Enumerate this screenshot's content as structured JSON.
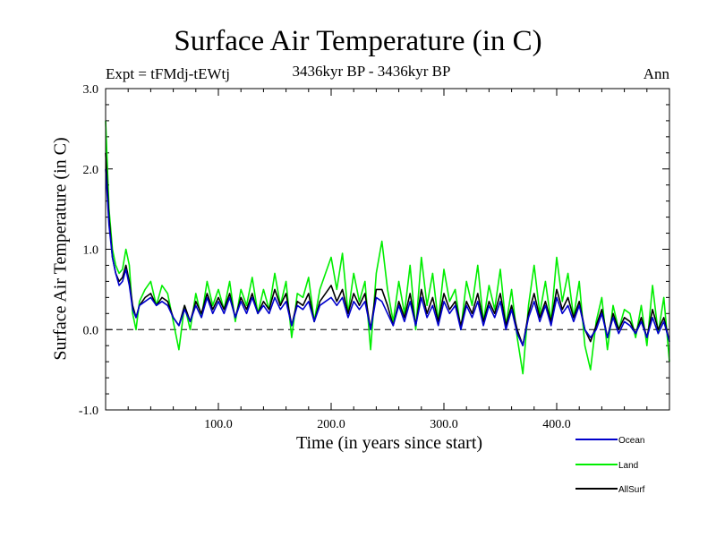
{
  "chart_data": {
    "type": "line",
    "title": "Surface Air Temperature (in C)",
    "experiment": "Expt = tFMdj-tEWtj",
    "period": "3436kyr BP - 3436kyr BP",
    "season": "Ann",
    "xlabel": "Time (in years since start)",
    "ylabel": "Surface Air Temperature (in C)",
    "xlim": [
      0,
      500
    ],
    "ylim": [
      -1.0,
      3.0
    ],
    "x_ticks": [
      {
        "value": 100,
        "label": "100.0"
      },
      {
        "value": 200,
        "label": "200.0"
      },
      {
        "value": 300,
        "label": "300.0"
      },
      {
        "value": 400,
        "label": "400.0"
      }
    ],
    "y_ticks": [
      {
        "value": -1.0,
        "label": "-1.0"
      },
      {
        "value": 0.0,
        "label": "0.0"
      },
      {
        "value": 1.0,
        "label": "1.0"
      },
      {
        "value": 2.0,
        "label": "2.0"
      },
      {
        "value": 3.0,
        "label": "3.0"
      }
    ],
    "reference_line": 0.0,
    "series": [
      {
        "name": "Land",
        "color": "#00ee00",
        "x": [
          0,
          3,
          6,
          9,
          12,
          15,
          18,
          21,
          24,
          27,
          30,
          35,
          40,
          45,
          50,
          55,
          60,
          65,
          70,
          75,
          80,
          85,
          90,
          95,
          100,
          105,
          110,
          115,
          120,
          125,
          130,
          135,
          140,
          145,
          150,
          155,
          160,
          165,
          170,
          175,
          180,
          185,
          190,
          195,
          200,
          205,
          210,
          215,
          220,
          225,
          230,
          235,
          240,
          245,
          250,
          255,
          260,
          265,
          270,
          275,
          280,
          285,
          290,
          295,
          300,
          305,
          310,
          315,
          320,
          325,
          330,
          335,
          340,
          345,
          350,
          355,
          360,
          365,
          370,
          375,
          380,
          385,
          390,
          395,
          400,
          405,
          410,
          415,
          420,
          425,
          430,
          435,
          440,
          445,
          450,
          455,
          460,
          465,
          470,
          475,
          480,
          485,
          490,
          495,
          500
        ],
        "values": [
          2.6,
          1.5,
          1.0,
          0.8,
          0.7,
          0.75,
          1.0,
          0.8,
          0.2,
          0.0,
          0.35,
          0.5,
          0.6,
          0.3,
          0.55,
          0.45,
          0.1,
          -0.25,
          0.3,
          0.0,
          0.45,
          0.15,
          0.6,
          0.3,
          0.5,
          0.25,
          0.6,
          0.1,
          0.5,
          0.3,
          0.65,
          0.2,
          0.5,
          0.25,
          0.7,
          0.3,
          0.6,
          -0.1,
          0.45,
          0.4,
          0.65,
          0.1,
          0.5,
          0.7,
          0.9,
          0.5,
          0.95,
          0.2,
          0.7,
          0.35,
          0.6,
          -0.25,
          0.7,
          1.1,
          0.5,
          0.1,
          0.6,
          0.2,
          0.8,
          0.0,
          0.9,
          0.3,
          0.7,
          0.1,
          0.75,
          0.35,
          0.5,
          0.0,
          0.6,
          0.3,
          0.8,
          0.1,
          0.55,
          0.25,
          0.75,
          0.05,
          0.5,
          -0.1,
          -0.55,
          0.3,
          0.8,
          0.2,
          0.6,
          0.1,
          0.9,
          0.35,
          0.7,
          0.15,
          0.6,
          -0.2,
          -0.5,
          0.1,
          0.4,
          -0.25,
          0.3,
          0.0,
          0.25,
          0.2,
          -0.1,
          0.3,
          -0.2,
          0.55,
          -0.05,
          0.4,
          -0.4
        ]
      },
      {
        "name": "AllSurf",
        "color": "#000000",
        "x": [
          0,
          3,
          6,
          9,
          12,
          15,
          18,
          21,
          24,
          27,
          30,
          35,
          40,
          45,
          50,
          55,
          60,
          65,
          70,
          75,
          80,
          85,
          90,
          95,
          100,
          105,
          110,
          115,
          120,
          125,
          130,
          135,
          140,
          145,
          150,
          155,
          160,
          165,
          170,
          175,
          180,
          185,
          190,
          195,
          200,
          205,
          210,
          215,
          220,
          225,
          230,
          235,
          240,
          245,
          250,
          255,
          260,
          265,
          270,
          275,
          280,
          285,
          290,
          295,
          300,
          305,
          310,
          315,
          320,
          325,
          330,
          335,
          340,
          345,
          350,
          355,
          360,
          365,
          370,
          375,
          380,
          385,
          390,
          395,
          400,
          405,
          410,
          415,
          420,
          425,
          430,
          435,
          440,
          445,
          450,
          455,
          460,
          465,
          470,
          475,
          480,
          485,
          490,
          495,
          500
        ],
        "values": [
          2.2,
          1.4,
          0.9,
          0.7,
          0.6,
          0.65,
          0.8,
          0.6,
          0.3,
          0.15,
          0.3,
          0.4,
          0.45,
          0.3,
          0.4,
          0.35,
          0.15,
          0.05,
          0.3,
          0.1,
          0.35,
          0.2,
          0.45,
          0.25,
          0.4,
          0.25,
          0.45,
          0.15,
          0.4,
          0.25,
          0.45,
          0.2,
          0.35,
          0.25,
          0.5,
          0.3,
          0.45,
          0.05,
          0.35,
          0.3,
          0.45,
          0.1,
          0.35,
          0.45,
          0.55,
          0.35,
          0.5,
          0.2,
          0.45,
          0.3,
          0.45,
          0.0,
          0.5,
          0.5,
          0.3,
          0.05,
          0.35,
          0.15,
          0.45,
          0.05,
          0.5,
          0.2,
          0.4,
          0.1,
          0.45,
          0.25,
          0.35,
          0.05,
          0.35,
          0.2,
          0.45,
          0.1,
          0.35,
          0.2,
          0.45,
          0.05,
          0.3,
          0.0,
          -0.2,
          0.2,
          0.45,
          0.15,
          0.35,
          0.1,
          0.5,
          0.25,
          0.4,
          0.15,
          0.35,
          0.0,
          -0.15,
          0.05,
          0.25,
          -0.1,
          0.2,
          0.0,
          0.15,
          0.1,
          -0.05,
          0.15,
          -0.1,
          0.25,
          0.0,
          0.15,
          -0.15
        ]
      },
      {
        "name": "Ocean",
        "color": "#0000cc",
        "x": [
          0,
          3,
          6,
          9,
          12,
          15,
          18,
          21,
          24,
          27,
          30,
          35,
          40,
          45,
          50,
          55,
          60,
          65,
          70,
          75,
          80,
          85,
          90,
          95,
          100,
          105,
          110,
          115,
          120,
          125,
          130,
          135,
          140,
          145,
          150,
          155,
          160,
          165,
          170,
          175,
          180,
          185,
          190,
          195,
          200,
          205,
          210,
          215,
          220,
          225,
          230,
          235,
          240,
          245,
          250,
          255,
          260,
          265,
          270,
          275,
          280,
          285,
          290,
          295,
          300,
          305,
          310,
          315,
          320,
          325,
          330,
          335,
          340,
          345,
          350,
          355,
          360,
          365,
          370,
          375,
          380,
          385,
          390,
          395,
          400,
          405,
          410,
          415,
          420,
          425,
          430,
          435,
          440,
          445,
          450,
          455,
          460,
          465,
          470,
          475,
          480,
          485,
          490,
          495,
          500
        ],
        "values": [
          2.0,
          1.3,
          0.9,
          0.7,
          0.55,
          0.6,
          0.75,
          0.55,
          0.25,
          0.15,
          0.3,
          0.35,
          0.4,
          0.3,
          0.35,
          0.3,
          0.15,
          0.05,
          0.25,
          0.1,
          0.3,
          0.15,
          0.4,
          0.2,
          0.35,
          0.2,
          0.4,
          0.15,
          0.35,
          0.2,
          0.4,
          0.2,
          0.3,
          0.2,
          0.4,
          0.25,
          0.35,
          0.05,
          0.3,
          0.25,
          0.35,
          0.1,
          0.3,
          0.35,
          0.4,
          0.3,
          0.4,
          0.15,
          0.35,
          0.25,
          0.35,
          0.0,
          0.4,
          0.35,
          0.2,
          0.05,
          0.3,
          0.1,
          0.35,
          0.05,
          0.4,
          0.15,
          0.3,
          0.05,
          0.35,
          0.2,
          0.3,
          0.0,
          0.3,
          0.15,
          0.35,
          0.05,
          0.3,
          0.15,
          0.35,
          0.0,
          0.25,
          -0.05,
          -0.2,
          0.15,
          0.35,
          0.1,
          0.3,
          0.05,
          0.4,
          0.2,
          0.3,
          0.1,
          0.3,
          0.0,
          -0.1,
          0.0,
          0.2,
          -0.1,
          0.15,
          -0.05,
          0.1,
          0.05,
          -0.05,
          0.1,
          -0.1,
          0.15,
          -0.05,
          0.1,
          -0.15
        ]
      }
    ],
    "legend": [
      {
        "name": "Ocean",
        "color": "#0000cc"
      },
      {
        "name": "Land",
        "color": "#00ee00"
      },
      {
        "name": "AllSurf",
        "color": "#000000"
      }
    ]
  }
}
